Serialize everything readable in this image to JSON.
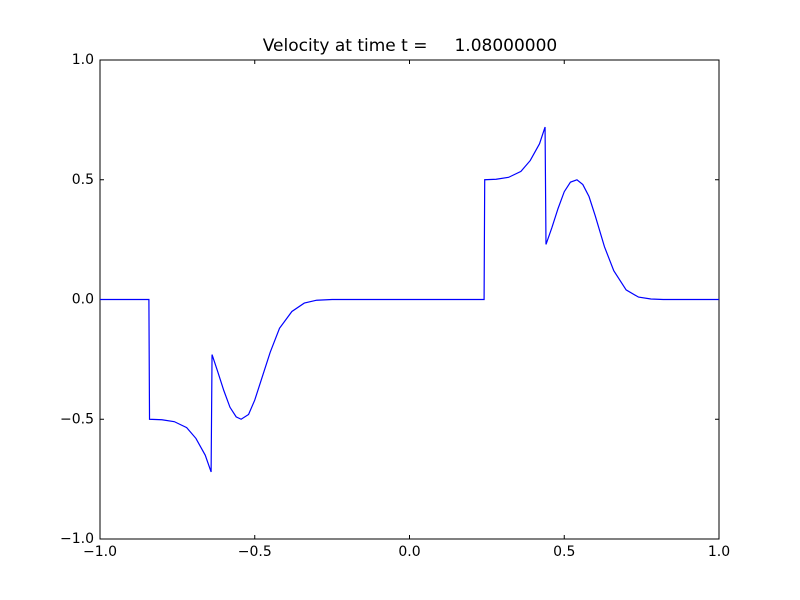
{
  "chart_data": {
    "type": "line",
    "title": "Velocity at time t =     1.08000000",
    "x": [
      -1,
      -0.842,
      -0.84,
      -0.8,
      -0.76,
      -0.72,
      -0.69,
      -0.66,
      -0.641,
      -0.638,
      -0.62,
      -0.6,
      -0.58,
      -0.56,
      -0.544,
      -0.52,
      -0.5,
      -0.48,
      -0.45,
      -0.42,
      -0.38,
      -0.34,
      -0.3,
      -0.25,
      0.241,
      0.243,
      0.28,
      0.32,
      0.36,
      0.39,
      0.42,
      0.438,
      0.441,
      0.46,
      0.48,
      0.5,
      0.52,
      0.541,
      0.56,
      0.58,
      0.6,
      0.63,
      0.66,
      0.7,
      0.74,
      0.78,
      0.82,
      1
    ],
    "series": [
      {
        "color": "#0000ff",
        "values": [
          0,
          0,
          -0.5,
          -0.502,
          -0.51,
          -0.535,
          -0.58,
          -0.65,
          -0.72,
          -0.23,
          -0.3,
          -0.38,
          -0.45,
          -0.49,
          -0.5,
          -0.48,
          -0.42,
          -0.34,
          -0.22,
          -0.12,
          -0.05,
          -0.015,
          -0.003,
          0,
          0,
          0.5,
          0.502,
          0.51,
          0.535,
          0.58,
          0.65,
          0.72,
          0.23,
          0.3,
          0.38,
          0.45,
          0.49,
          0.5,
          0.48,
          0.43,
          0.35,
          0.22,
          0.12,
          0.04,
          0.01,
          0.002,
          0,
          0
        ]
      }
    ],
    "xlim": [
      -1,
      1
    ],
    "xticks": [
      {
        "value": -1,
        "label": "−1.0"
      },
      {
        "value": -0.5,
        "label": "−0.5"
      },
      {
        "value": 0,
        "label": "0.0"
      },
      0.5,
      {
        "value": 1,
        "label": "1.0"
      }
    ],
    "ylim": [
      -1,
      1
    ],
    "yticks": [
      {
        "value": -1,
        "label": "−1.0"
      },
      {
        "value": -0.5,
        "label": "−0.5"
      },
      {
        "value": 0,
        "label": "0.0"
      },
      0.5,
      {
        "value": 1,
        "label": "1.0"
      }
    ],
    "grid": false
  }
}
